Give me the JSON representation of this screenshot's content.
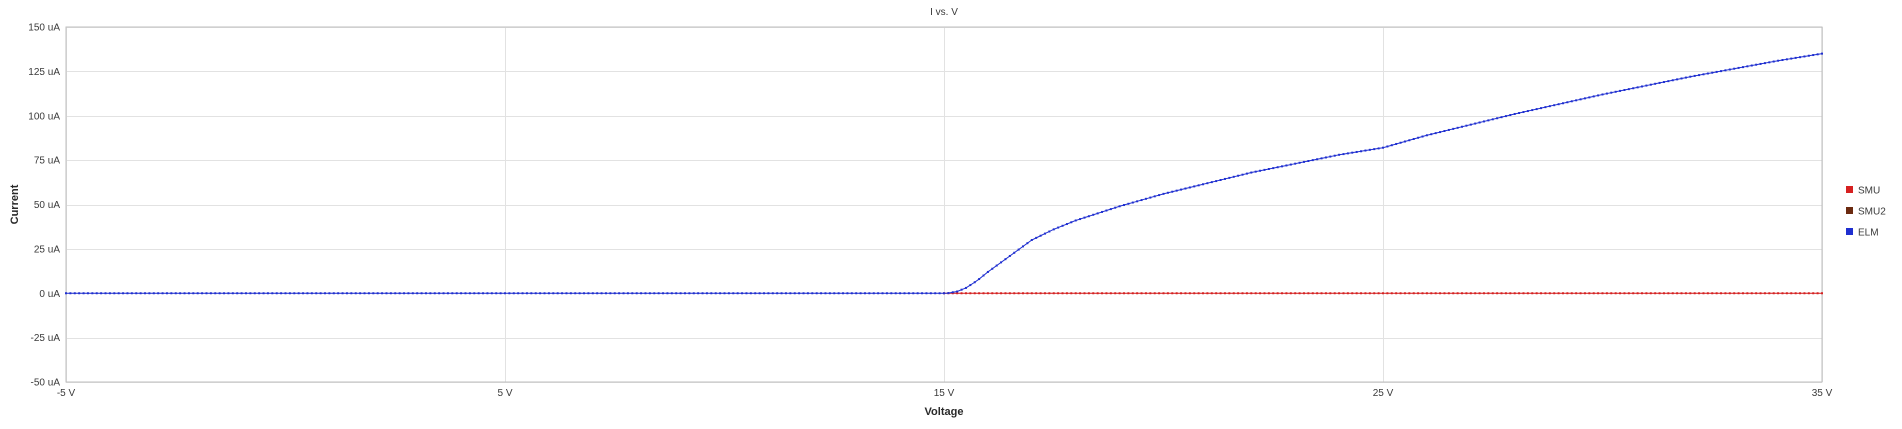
{
  "chart_data": {
    "type": "scatter",
    "title": "I vs. V",
    "xlabel": "Voltage",
    "ylabel": "Current",
    "xlim": [
      -5,
      35
    ],
    "ylim": [
      -50,
      150
    ],
    "x_ticks": [
      -5,
      5,
      15,
      25,
      35
    ],
    "x_tick_labels": [
      "-5 V",
      "5 V",
      "15 V",
      "25 V",
      "35 V"
    ],
    "y_ticks": [
      150,
      125,
      100,
      75,
      50,
      25,
      0,
      -25,
      -50
    ],
    "y_tick_labels": [
      "150 uA",
      "125 uA",
      "100 uA",
      "75 uA",
      "50 uA",
      "25 uA",
      "0 uA",
      "-25 uA",
      "-50 uA"
    ],
    "grid": true,
    "legend_position": "right",
    "series": [
      {
        "name": "SMU",
        "color": "#d62020",
        "x_range": [
          15,
          35
        ],
        "step": 0.1,
        "points": [
          [
            15,
            0
          ],
          [
            35,
            0
          ]
        ]
      },
      {
        "name": "SMU2",
        "color": "#6b2a10",
        "x_range": [],
        "step": 0.1,
        "points": []
      },
      {
        "name": "ELM",
        "color": "#1f2fd0",
        "x_range": [
          -5,
          35
        ],
        "step": 0.1,
        "points": [
          [
            -5,
            0
          ],
          [
            15,
            0
          ],
          [
            15.1,
            0.1
          ],
          [
            15.3,
            1
          ],
          [
            15.5,
            3
          ],
          [
            15.75,
            7
          ],
          [
            16,
            12
          ],
          [
            16.5,
            21
          ],
          [
            17,
            30
          ],
          [
            17.5,
            36
          ],
          [
            18,
            41
          ],
          [
            19,
            49
          ],
          [
            20,
            56
          ],
          [
            22,
            68
          ],
          [
            24,
            78
          ],
          [
            25,
            82
          ],
          [
            26,
            89
          ],
          [
            28,
            101
          ],
          [
            30,
            112
          ],
          [
            32,
            122
          ],
          [
            34,
            131
          ],
          [
            35,
            135
          ]
        ]
      }
    ]
  }
}
